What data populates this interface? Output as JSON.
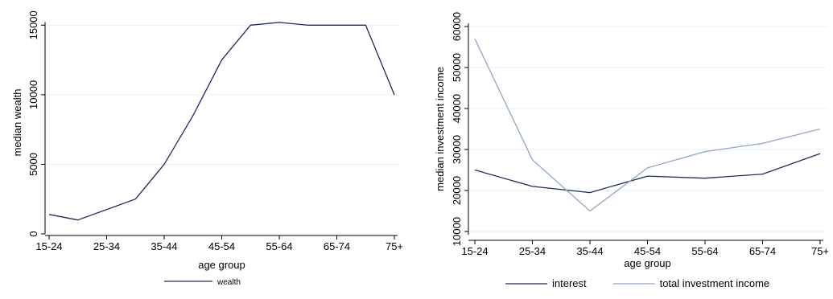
{
  "colors": {
    "dark_line": "#1c2b5a",
    "light_line": "#8ea6c4",
    "grid": "#eaf0f4",
    "axis": "#000000"
  },
  "chart_data": [
    {
      "type": "line",
      "x_categories_labeled": [
        "15-24",
        "25-34",
        "35-44",
        "45-54",
        "55-64",
        "65-74",
        "75+"
      ],
      "x_points": [
        0,
        0.5,
        1.5,
        2,
        2.5,
        3,
        3.5,
        4,
        4.5,
        5,
        5.5,
        6
      ],
      "xlabel": "age group",
      "ylabel": "median wealth",
      "ylim": [
        0,
        16000
      ],
      "yticks": [
        0,
        5000,
        10000,
        15000
      ],
      "grid": true,
      "legend": "bottom",
      "series": [
        {
          "name": "wealth",
          "color": "#1c2b5a",
          "values": [
            1400,
            1000,
            2500,
            5000,
            8500,
            12500,
            15000,
            15200,
            15000,
            15000,
            15000,
            10000
          ]
        }
      ]
    },
    {
      "type": "line",
      "categories": [
        "15-24",
        "25-34",
        "35-44",
        "45-54",
        "55-64",
        "65-74",
        "75+"
      ],
      "xlabel": "age group",
      "ylabel": "median investment income",
      "ylim": [
        10000,
        60000
      ],
      "yticks": [
        10000,
        20000,
        30000,
        40000,
        50000,
        60000
      ],
      "grid": true,
      "legend": "bottom",
      "series": [
        {
          "name": "interest",
          "color": "#1c2b5a",
          "values": [
            25000,
            21000,
            19500,
            23500,
            23000,
            24000,
            29000
          ]
        },
        {
          "name": "total investment income",
          "color": "#8ea6c4",
          "values": [
            57000,
            27500,
            15000,
            25500,
            29500,
            31500,
            35000
          ]
        }
      ]
    }
  ]
}
